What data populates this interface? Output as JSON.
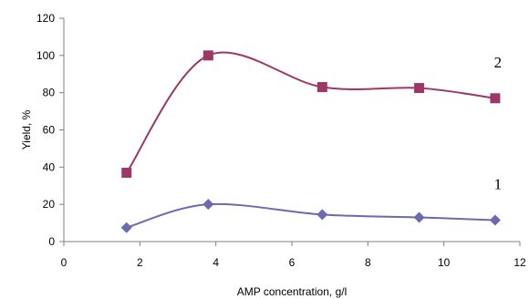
{
  "chart_data": {
    "type": "line",
    "xlabel": "AMP concentration, g/l",
    "ylabel": "Yield, %",
    "xlim": [
      0,
      12
    ],
    "ylim": [
      0,
      120
    ],
    "xticks": [
      "0",
      "2",
      "4",
      "6",
      "8",
      "10",
      "12"
    ],
    "yticks": [
      "0",
      "20",
      "40",
      "60",
      "80",
      "100",
      "120"
    ],
    "grid": false,
    "series": [
      {
        "name": "1",
        "color": "#6b69b0",
        "marker": "diamond",
        "x": [
          1.65,
          3.8,
          6.8,
          9.35,
          11.35
        ],
        "y": [
          7.5,
          20,
          14.5,
          13,
          11.5
        ]
      },
      {
        "name": "2",
        "color": "#9e3668",
        "marker": "square",
        "x": [
          1.65,
          3.8,
          6.8,
          9.35,
          11.35
        ],
        "y": [
          37,
          100,
          83,
          82.5,
          77
        ]
      }
    ]
  }
}
